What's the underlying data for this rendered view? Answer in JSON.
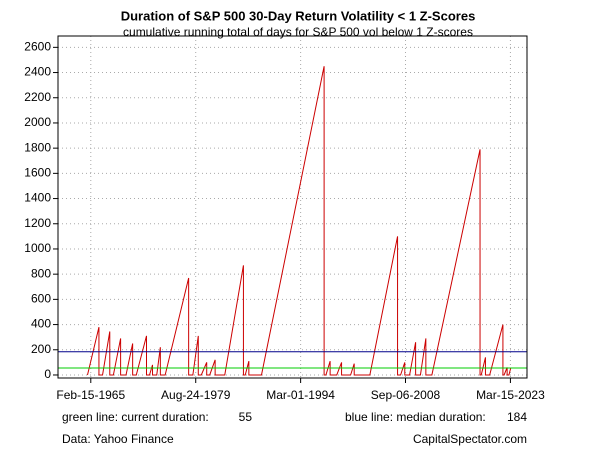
{
  "chart_data": {
    "type": "line",
    "title": "Duration of S&P 500 30-Day Return Volatility < 1 Z-Scores",
    "subtitle": "cumulative running total of days for S&P 500 vol below 1 Z-scores",
    "x": [
      "1964-09",
      "1966-04",
      "1966-04",
      "1966-10",
      "1967-10",
      "1967-10",
      "1968-04",
      "1969-04",
      "1969-04",
      "1970-01",
      "1970-12",
      "1970-12",
      "1971-06",
      "1972-11",
      "1972-11",
      "1973-04",
      "1973-09",
      "1973-09",
      "1974-04",
      "1974-10",
      "1974-10",
      "1975-06",
      "1978-09",
      "1978-09",
      "1979-04",
      "1980-01",
      "1980-01",
      "1980-06",
      "1981-03",
      "1981-03",
      "1981-08",
      "1982-05",
      "1982-05",
      "1983-09",
      "1986-04",
      "1986-04",
      "1986-07",
      "1987-01",
      "1987-01",
      "1988-10",
      "1997-06",
      "1997-06",
      "1997-09",
      "1998-04",
      "1998-04",
      "1999-03",
      "1999-11",
      "1999-11",
      "2001-02",
      "2001-08",
      "2001-08",
      "2003-10",
      "2007-08",
      "2007-08",
      "2008-01",
      "2008-08",
      "2008-08",
      "2009-04",
      "2010-02",
      "2010-02",
      "2010-10",
      "2011-07",
      "2011-07",
      "2012-05",
      "2019-01",
      "2019-01",
      "2019-03",
      "2019-10",
      "2019-10",
      "2020-05",
      "2022-03",
      "2022-03",
      "2022-05",
      "2022-10",
      "2022-10",
      "2023-01",
      "2023-04"
    ],
    "series": [
      {
        "color": "#cc0000",
        "values": [
          0,
          380,
          0,
          0,
          345,
          0,
          0,
          290,
          0,
          0,
          250,
          0,
          0,
          310,
          0,
          0,
          80,
          0,
          0,
          220,
          0,
          0,
          770,
          0,
          0,
          310,
          0,
          0,
          100,
          0,
          0,
          120,
          0,
          0,
          870,
          0,
          0,
          110,
          0,
          0,
          2450,
          0,
          0,
          110,
          0,
          0,
          100,
          0,
          0,
          90,
          0,
          0,
          1100,
          0,
          0,
          100,
          0,
          0,
          260,
          0,
          0,
          290,
          0,
          0,
          1790,
          0,
          0,
          140,
          0,
          0,
          400,
          0,
          0,
          60,
          0,
          0,
          55
        ]
      }
    ],
    "xlim": [
      "1960-08",
      "2025-07"
    ],
    "xticks": [
      {
        "value": "1965-02-15",
        "label": "Feb-15-1965"
      },
      {
        "value": "1979-08-24",
        "label": "Aug-24-1979"
      },
      {
        "value": "1994-03-01",
        "label": "Mar-01-1994"
      },
      {
        "value": "2008-09-06",
        "label": "Sep-06-2008"
      },
      {
        "value": "2023-03-15",
        "label": "Mar-15-2023"
      }
    ],
    "ylim": [
      -24,
      2690
    ],
    "yticks": [
      0,
      200,
      400,
      600,
      800,
      1000,
      1200,
      1400,
      1600,
      1800,
      2000,
      2200,
      2400,
      2600
    ],
    "grid": true,
    "reference_lines": [
      {
        "label": "green line: current duration:",
        "value": 55,
        "color": "#00cc00"
      },
      {
        "label": "blue line: median duration:",
        "value": 184,
        "color": "#00008b"
      }
    ],
    "source": "Data: Yahoo Finance",
    "credit": "CapitalSpectator.com"
  }
}
